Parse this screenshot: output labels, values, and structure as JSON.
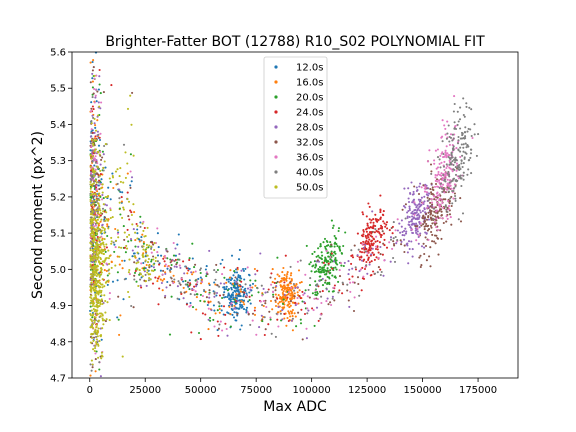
{
  "chart_data": {
    "type": "scatter",
    "title": "Brighter-Fatter BOT (12788) R10_S02 POLYNOMIAL FIT",
    "xlabel": "Max ADC",
    "ylabel": "Second moment (px^2)",
    "xlim": [
      -8000,
      193000
    ],
    "ylim": [
      4.7,
      5.6
    ],
    "xticks": [
      0,
      25000,
      50000,
      75000,
      100000,
      125000,
      150000,
      175000
    ],
    "xtick_labels": [
      "0",
      "25000",
      "50000",
      "75000",
      "100000",
      "125000",
      "150000",
      "175000"
    ],
    "yticks": [
      4.7,
      4.8,
      4.9,
      5.0,
      5.1,
      5.2,
      5.3,
      5.4,
      5.5,
      5.6
    ],
    "ytick_labels": [
      "4.7",
      "4.8",
      "4.9",
      "5.0",
      "5.1",
      "5.2",
      "5.3",
      "5.4",
      "5.5",
      "5.6"
    ],
    "grid": false,
    "legend_position": "top-center",
    "series": [
      {
        "name": "12.0s",
        "color": "#1f77b4",
        "cluster_x": 66000,
        "cluster_y": 4.93,
        "spread_x": 3000,
        "spread_y": 0.035
      },
      {
        "name": "16.0s",
        "color": "#ff7f0e",
        "cluster_x": 89000,
        "cluster_y": 4.93,
        "spread_x": 3000,
        "spread_y": 0.035
      },
      {
        "name": "20.0s",
        "color": "#2ca02c",
        "cluster_x": 107000,
        "cluster_y": 5.02,
        "spread_x": 3500,
        "spread_y": 0.04
      },
      {
        "name": "24.0s",
        "color": "#d62728",
        "cluster_x": 127000,
        "cluster_y": 5.08,
        "spread_x": 3500,
        "spread_y": 0.04
      },
      {
        "name": "28.0s",
        "color": "#9467bd",
        "cluster_x": 147000,
        "cluster_y": 5.14,
        "spread_x": 3500,
        "spread_y": 0.04
      },
      {
        "name": "32.0s",
        "color": "#8c564b",
        "cluster_x": 156000,
        "cluster_y": 5.16,
        "spread_x": 4000,
        "spread_y": 0.05
      },
      {
        "name": "36.0s",
        "color": "#e377c2",
        "cluster_x": 160000,
        "cluster_y": 5.25,
        "spread_x": 3500,
        "spread_y": 0.06
      },
      {
        "name": "40.0s",
        "color": "#7f7f7f",
        "cluster_x": 166000,
        "cluster_y": 5.32,
        "spread_x": 3500,
        "spread_y": 0.06
      },
      {
        "name": "50.0s",
        "color": "#bcbd22",
        "cluster_x": 3000,
        "cluster_y": 5.0,
        "spread_x": 2500,
        "spread_y": 0.12
      }
    ]
  }
}
